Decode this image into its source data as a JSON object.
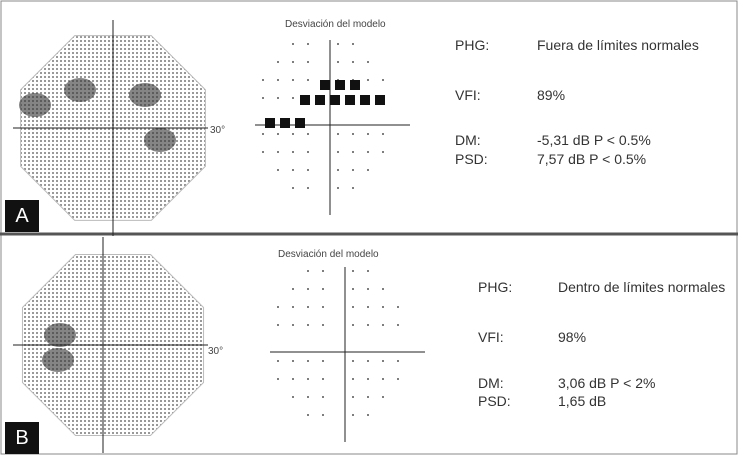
{
  "panels": [
    {
      "label": "A",
      "degree": "30°",
      "deviation_title": "Desviación del modelo",
      "rows": [
        [
          "PHG:",
          "Fuera de límites normales"
        ],
        [
          "VFI:",
          "89%"
        ],
        [
          "DM:",
          "-5,31 dB P < 0.5%"
        ],
        [
          "PSD:",
          "7,57 dB P < 0.5%"
        ]
      ]
    },
    {
      "label": "B",
      "degree": "30°",
      "deviation_title": "Desviación del modelo",
      "rows": [
        [
          "PHG:",
          "Dentro de límites normales"
        ],
        [
          "VFI:",
          "98%"
        ],
        [
          "DM:",
          "3,06 dB P < 2%"
        ],
        [
          "PSD:",
          "1,65 dB"
        ]
      ]
    }
  ]
}
